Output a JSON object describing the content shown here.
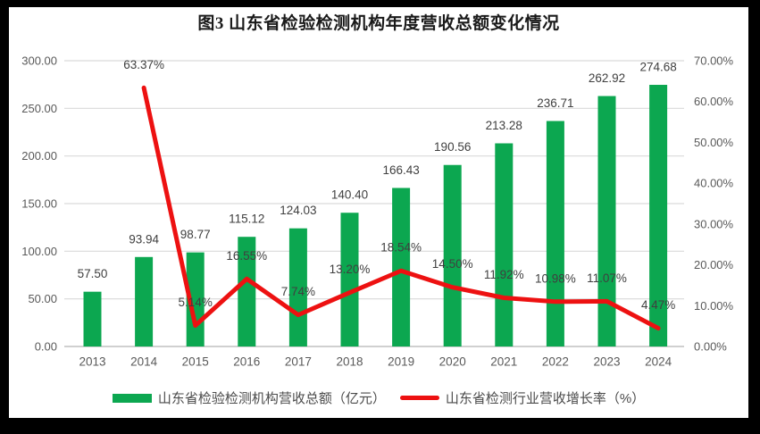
{
  "title": "图3  山东省检验检测机构年度营收总额变化情况",
  "chart_data": {
    "type": "bar",
    "categories": [
      "2013",
      "2014",
      "2015",
      "2016",
      "2017",
      "2018",
      "2019",
      "2020",
      "2021",
      "2022",
      "2023",
      "2024"
    ],
    "series": [
      {
        "name": "山东省检验检测机构营收总额（亿元）",
        "type": "bar",
        "axis": "left",
        "color": "#0CA750",
        "values": [
          57.5,
          93.94,
          98.77,
          115.12,
          124.03,
          140.4,
          166.43,
          190.56,
          213.28,
          236.71,
          262.92,
          274.68
        ],
        "labels": [
          "57.50",
          "93.94",
          "98.77",
          "115.12",
          "124.03",
          "140.40",
          "166.43",
          "190.56",
          "213.28",
          "236.71",
          "262.92",
          "274.68"
        ]
      },
      {
        "name": "山东省检测行业营收增长率（%）",
        "type": "line",
        "axis": "right",
        "color": "#ED1111",
        "values": [
          null,
          63.37,
          5.14,
          16.55,
          7.74,
          13.2,
          18.54,
          14.5,
          11.92,
          10.98,
          11.07,
          4.47
        ],
        "labels": [
          null,
          "63.37%",
          "5.14%",
          "16.55%",
          "7.74%",
          "13.20%",
          "18.54%",
          "14.50%",
          "11.92%",
          "10.98%",
          "11.07%",
          "4.47%"
        ]
      }
    ],
    "left_axis": {
      "min": 0,
      "max": 300,
      "tick_labels": [
        "300.00",
        "250.00",
        "200.00",
        "150.00",
        "100.00",
        "50.00",
        "0.00"
      ]
    },
    "right_axis": {
      "min": 0,
      "max": 70,
      "tick_labels": [
        "70.00%",
        "60.00%",
        "50.00%",
        "40.00%",
        "30.00%",
        "20.00%",
        "10.00%",
        "0.00%"
      ]
    },
    "grid": true,
    "legend_position": "bottom",
    "colors": {
      "grid": "#D9D9D9",
      "axis_line": "#C0C0C0",
      "axis_text": "#595959",
      "label_text": "#3F3F3F",
      "frame": "#000000",
      "background": "#FFFFFF"
    }
  }
}
